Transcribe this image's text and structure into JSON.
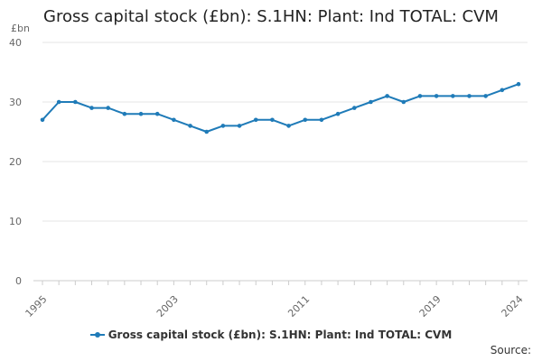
{
  "title": "Gross capital stock (£bn): S.1HN: Plant: Ind TOTAL: CVM",
  "source_label": "Source:",
  "colors": {
    "series": "#1f7bb8",
    "grid": "#e6e6e6",
    "axis": "#cccccc",
    "text": "#666666"
  },
  "chart_data": {
    "type": "line",
    "title": "Gross capital stock (£bn): S.1HN: Plant: Ind TOTAL: CVM",
    "ylabel": "£bn",
    "xlabel": "",
    "ylim": [
      0,
      40
    ],
    "yticks": [
      0,
      10,
      20,
      30,
      40
    ],
    "xlim": [
      1995,
      2024
    ],
    "xticks": [
      1995,
      2003,
      2011,
      2019,
      2024
    ],
    "grid": true,
    "legend_position": "bottom",
    "x": [
      1995,
      1996,
      1997,
      1998,
      1999,
      2000,
      2001,
      2002,
      2003,
      2004,
      2005,
      2006,
      2007,
      2008,
      2009,
      2010,
      2011,
      2012,
      2013,
      2014,
      2015,
      2016,
      2017,
      2018,
      2019,
      2020,
      2021,
      2022,
      2023,
      2024
    ],
    "series": [
      {
        "name": "Gross capital stock (£bn): S.1HN: Plant: Ind TOTAL: CVM",
        "values": [
          27,
          30,
          30,
          29,
          29,
          28,
          28,
          28,
          27,
          26,
          25,
          26,
          26,
          27,
          27,
          26,
          27,
          27,
          28,
          29,
          30,
          31,
          30,
          31,
          31,
          31,
          31,
          31,
          32,
          33
        ]
      }
    ]
  }
}
